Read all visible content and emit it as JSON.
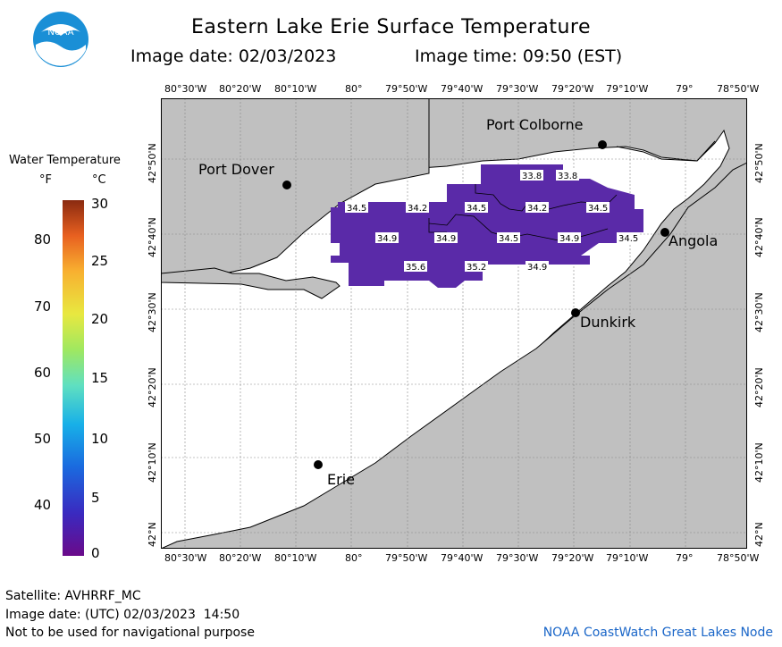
{
  "header": {
    "title": "Eastern Lake Erie Surface Temperature",
    "image_date": "Image date: 02/03/2023",
    "image_time": "Image time: 09:50 (EST)"
  },
  "logo": {
    "text": "NOAA"
  },
  "legend": {
    "title": "Water Temperature",
    "unit_f": "°F",
    "unit_c": "°C",
    "f_ticks": [
      "80",
      "70",
      "60",
      "50",
      "40"
    ],
    "c_ticks": [
      "30",
      "25",
      "20",
      "15",
      "10",
      "5",
      "0"
    ]
  },
  "axes": {
    "lon_labels": [
      "80°30'W",
      "80°20'W",
      "80°10'W",
      "80°",
      "79°50'W",
      "79°40'W",
      "79°30'W",
      "79°20'W",
      "79°10'W",
      "79°",
      "78°50'W"
    ],
    "lat_labels": [
      "42°50'N",
      "42°40'N",
      "42°30'N",
      "42°20'N",
      "42°10'N",
      "42°N"
    ]
  },
  "cities": [
    "Port Colborne",
    "Port Dover",
    "Angola",
    "Dunkirk",
    "Erie"
  ],
  "temperatures": [
    "33.8",
    "33.8",
    "34.5",
    "34.2",
    "34.5",
    "34.2",
    "34.5",
    "34.9",
    "34.9",
    "34.5",
    "34.9",
    "34.5",
    "35.6",
    "35.2",
    "34.9"
  ],
  "footer": {
    "satellite": "Satellite: AVHRRF_MC",
    "utc_date": "Image date: (UTC) 02/03/2023  14:50",
    "disclaimer": "Not to be used for navigational purpose",
    "credit": "NOAA CoastWatch Great Lakes Node"
  },
  "colors": {
    "land": "#c0c0c0",
    "water": "#ffffff",
    "ice_purple": "#5a2aa8",
    "accent_blue": "#1a66c8"
  }
}
